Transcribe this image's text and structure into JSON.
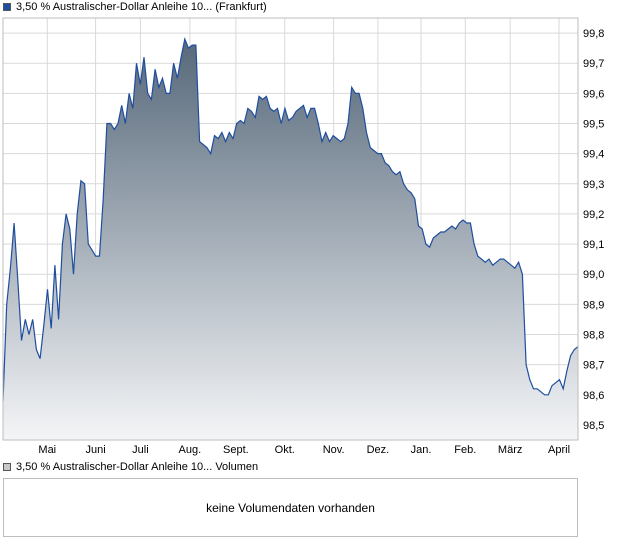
{
  "colors": {
    "line": "#1f4e9e",
    "fill_top": "#56687a",
    "fill_bottom": "#f4f5f7",
    "grid": "#d9d9d9",
    "frame": "#bdbdbd",
    "price_swatch": "#1f4e9e",
    "volume_swatch": "#c8c8c8"
  },
  "price_panel": {
    "legend": "3,50 % Australischer-Dollar Anleihe 10... (Frankfurt)"
  },
  "volume_panel": {
    "legend": "3,50 % Australischer-Dollar Anleihe 10... Volumen",
    "message": "keine Volumendaten vorhanden"
  },
  "chart_data": {
    "type": "area",
    "title": "",
    "xlabel": "",
    "ylabel": "",
    "ylim": [
      98.45,
      99.85
    ],
    "y_ticks": [
      "98,5",
      "98,6",
      "98,7",
      "98,8",
      "98,9",
      "99,0",
      "99,1",
      "99,2",
      "99,3",
      "99,4",
      "99,5",
      "99,6",
      "99,7",
      "99,8"
    ],
    "x_ticks": [
      "Mai",
      "Juni",
      "Juli",
      "Aug.",
      "Sept.",
      "Okt.",
      "Nov.",
      "Dez.",
      "Jan.",
      "Feb.",
      "März",
      "April"
    ],
    "grid": true,
    "series": [
      {
        "values": [
          98.58,
          98.9,
          99.02,
          99.17,
          98.98,
          98.78,
          98.85,
          98.8,
          98.85,
          98.75,
          98.72,
          98.83,
          98.95,
          98.82,
          99.03,
          98.85,
          99.1,
          99.2,
          99.15,
          99.0,
          99.2,
          99.31,
          99.3,
          99.1,
          99.08,
          99.06,
          99.06,
          99.25,
          99.5,
          99.5,
          99.48,
          99.5,
          99.56,
          99.5,
          99.6,
          99.55,
          99.7,
          99.63,
          99.72,
          99.6,
          99.58,
          99.68,
          99.62,
          99.65,
          99.6,
          99.6,
          99.7,
          99.65,
          99.72,
          99.78,
          99.75,
          99.76,
          99.76,
          99.44,
          99.43,
          99.42,
          99.4,
          99.46,
          99.45,
          99.47,
          99.44,
          99.47,
          99.45,
          99.5,
          99.51,
          99.5,
          99.55,
          99.54,
          99.52,
          99.59,
          99.58,
          99.59,
          99.55,
          99.54,
          99.55,
          99.5,
          99.55,
          99.51,
          99.52,
          99.54,
          99.55,
          99.56,
          99.52,
          99.55,
          99.55,
          99.5,
          99.44,
          99.47,
          99.44,
          99.46,
          99.45,
          99.44,
          99.45,
          99.5,
          99.62,
          99.6,
          99.6,
          99.55,
          99.47,
          99.42,
          99.41,
          99.4,
          99.4,
          99.37,
          99.36,
          99.34,
          99.33,
          99.34,
          99.3,
          99.28,
          99.27,
          99.25,
          99.16,
          99.15,
          99.1,
          99.09,
          99.12,
          99.13,
          99.14,
          99.14,
          99.15,
          99.16,
          99.15,
          99.17,
          99.18,
          99.17,
          99.17,
          99.1,
          99.06,
          99.05,
          99.04,
          99.05,
          99.03,
          99.04,
          99.05,
          99.05,
          99.04,
          99.03,
          99.02,
          99.04,
          99.0,
          98.7,
          98.65,
          98.62,
          98.62,
          98.61,
          98.6,
          98.6,
          98.63,
          98.64,
          98.65,
          98.62,
          98.68,
          98.73,
          98.75,
          98.76
        ]
      }
    ]
  }
}
